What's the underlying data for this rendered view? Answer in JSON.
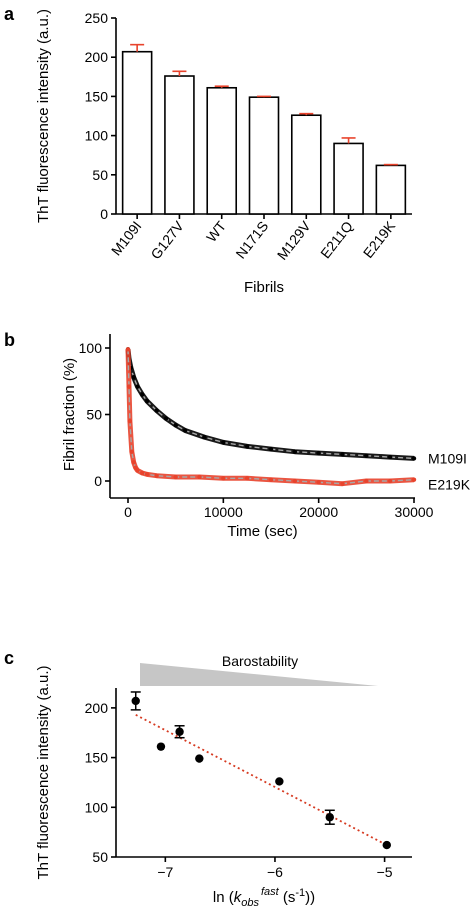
{
  "chart_data": [
    {
      "panel": "a",
      "type": "bar",
      "xlabel": "Fibrils",
      "ylabel": "ThT fluorescence intensity (a.u.)",
      "ylim": [
        0,
        250
      ],
      "yticks": [
        0,
        50,
        100,
        150,
        200,
        250
      ],
      "categories": [
        "M109I",
        "G127V",
        "WT",
        "N171S",
        "M129V",
        "E211Q",
        "E219K"
      ],
      "values": [
        207,
        176,
        161,
        149,
        126,
        90,
        62
      ],
      "errors": [
        9,
        6,
        2,
        1,
        2,
        7,
        1
      ],
      "bar_color": "#ffffff",
      "error_color": "#e8432c"
    },
    {
      "panel": "b",
      "type": "line",
      "xlabel": "Time (sec)",
      "ylabel": "Fibril fraction (%)",
      "xlim": [
        0,
        30000
      ],
      "ylim": [
        0,
        100
      ],
      "xticks": [
        0,
        10000,
        20000,
        30000
      ],
      "yticks": [
        0,
        50,
        100
      ],
      "series": [
        {
          "name": "M109I",
          "color": "#000000",
          "x": [
            0,
            100,
            300,
            600,
            1000,
            1500,
            2000,
            3000,
            4000,
            5000,
            6000,
            8000,
            10000,
            12500,
            15000,
            17500,
            20000,
            22500,
            25000,
            27500,
            30000
          ],
          "y": [
            99,
            92,
            85,
            78,
            71,
            65,
            60,
            53,
            47,
            42,
            38,
            33,
            29,
            26,
            24,
            22,
            21,
            20,
            19,
            18,
            17
          ]
        },
        {
          "name": "E219K",
          "color": "#e8432c",
          "x": [
            0,
            100,
            200,
            400,
            600,
            800,
            1000,
            1500,
            2000,
            3000,
            5000,
            7500,
            10000,
            12500,
            15000,
            17500,
            20000,
            22500,
            25000,
            27500,
            30000
          ],
          "y": [
            99,
            71,
            45,
            22,
            14,
            10,
            8,
            6,
            5,
            4,
            3,
            3,
            2,
            2,
            1,
            0,
            -1,
            -2,
            0,
            0,
            1
          ]
        }
      ]
    },
    {
      "panel": "c",
      "type": "scatter",
      "xlabel": "ln (kobs fast (s-1))",
      "xlabel_parts": {
        "prefix": "ln (",
        "k": "k",
        "sub": "obs",
        "sup": "fast",
        "suffix": " (s",
        "exp": "-1",
        "end": "))"
      },
      "ylabel": "ThT fluorescence intensity (a.u.)",
      "xlim": [
        -7.45,
        -4.75
      ],
      "ylim": [
        50,
        220
      ],
      "xticks": [
        -7,
        -6,
        -5
      ],
      "yticks": [
        50,
        100,
        150,
        200
      ],
      "banner": "Barostability",
      "banner_color": "#c6c6c6",
      "points": [
        {
          "x": -7.27,
          "y": 207,
          "err": 9
        },
        {
          "x": -7.04,
          "y": 161,
          "err": 0
        },
        {
          "x": -6.87,
          "y": 176,
          "err": 6
        },
        {
          "x": -6.69,
          "y": 149,
          "err": 0
        },
        {
          "x": -5.96,
          "y": 126,
          "err": 0
        },
        {
          "x": -5.5,
          "y": 90,
          "err": 7
        },
        {
          "x": -4.98,
          "y": 62,
          "err": 0
        }
      ],
      "fit": {
        "x": [
          -7.27,
          -4.98
        ],
        "y": [
          193,
          62
        ],
        "color": "#d63b22"
      }
    }
  ],
  "panels": {
    "a": "a",
    "b": "b",
    "c": "c"
  }
}
